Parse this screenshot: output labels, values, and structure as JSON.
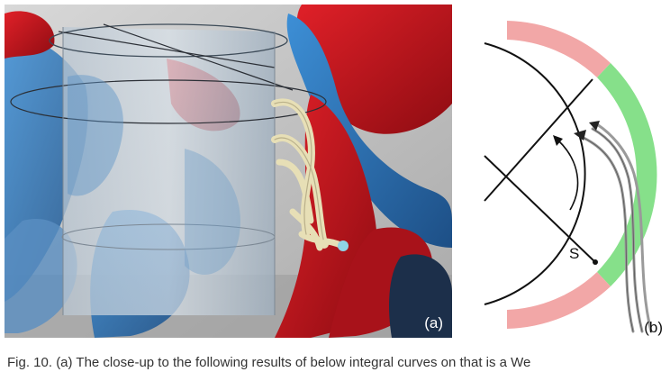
{
  "figure": {
    "panel_a": {
      "label": "(a)"
    },
    "panel_b": {
      "label": "(b)",
      "marker": "S"
    },
    "colors": {
      "negative_vortex": "#c0141c",
      "positive_vortex": "#2f74b8",
      "cylinder": "#aebdca",
      "streamline": "#e7dfb6",
      "arc_red": "#f2a7a7",
      "arc_green": "#86e08a"
    },
    "caption": "Fig. 10. (a) The close-up to the following results of below integral curves on that is a We"
  }
}
